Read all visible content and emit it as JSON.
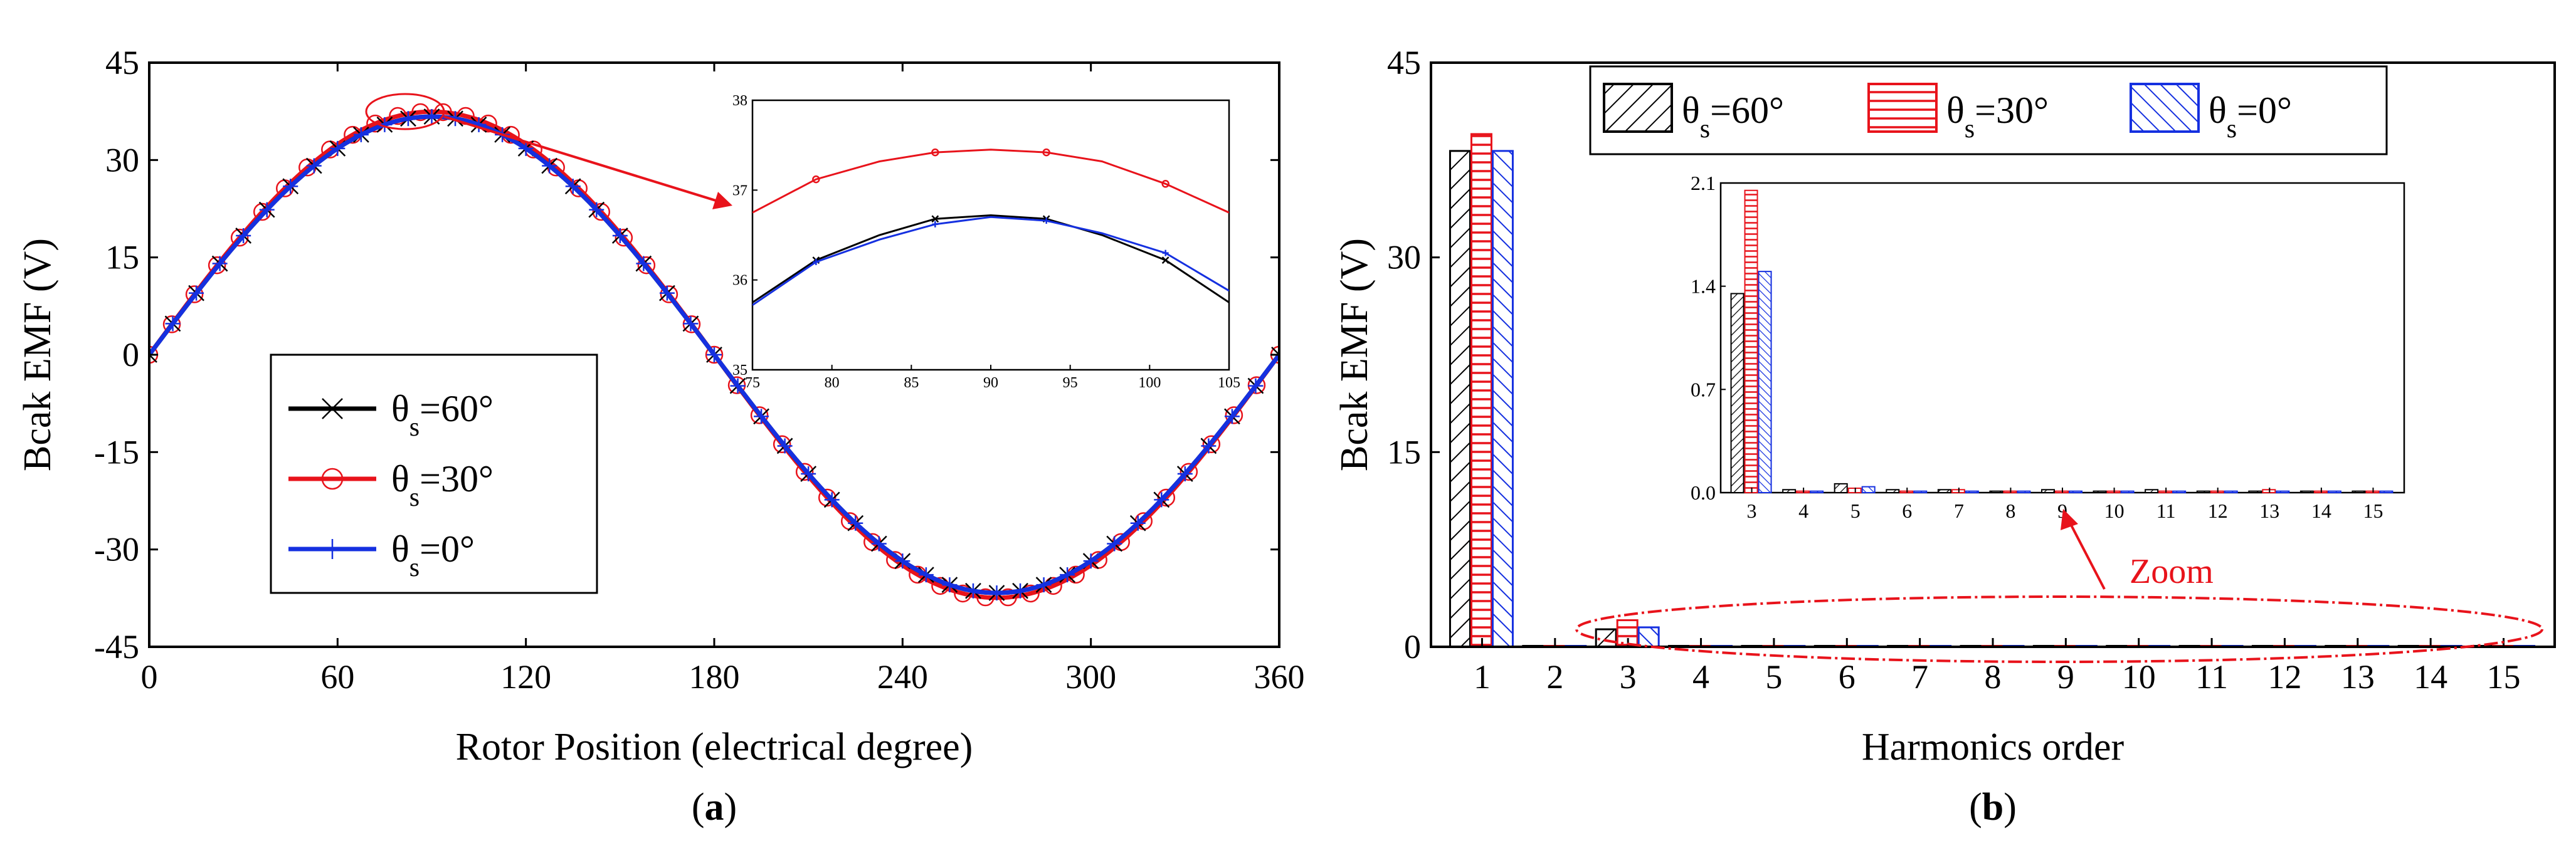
{
  "colors": {
    "black": "#000000",
    "red": "#e8131b",
    "blue": "#1530e0"
  },
  "chart_data": [
    {
      "type": "line",
      "caption": "a",
      "title": "",
      "xlabel": "Rotor Position (electrical degree)",
      "ylabel": "Bcak EMF (V)",
      "xlim": [
        0,
        360
      ],
      "ylim": [
        -45,
        45
      ],
      "xticks": [
        "0",
        "60",
        "120",
        "180",
        "240",
        "300",
        "360"
      ],
      "yticks": [
        "45",
        "30",
        "15",
        "0",
        "-15",
        "-30",
        "-45"
      ],
      "legend_location": "lower-left",
      "series": [
        {
          "name_main": "θ",
          "name_sub": "s",
          "name_rest": "=60°",
          "color": "#000000",
          "marker": "x",
          "amplitude": 36.7
        },
        {
          "name_main": "θ",
          "name_sub": "s",
          "name_rest": "=30°",
          "color": "#e8131b",
          "marker": "o",
          "amplitude": 37.45
        },
        {
          "name_main": "θ",
          "name_sub": "s",
          "name_rest": "=0°",
          "color": "#1530e0",
          "marker": "+",
          "amplitude": 36.7
        }
      ],
      "inset": {
        "xlim": [
          75,
          105
        ],
        "ylim": [
          35,
          38
        ],
        "xticks": [
          "75",
          "80",
          "85",
          "90",
          "95",
          "100",
          "105"
        ],
        "yticks": [
          "38",
          "37",
          "36",
          "35"
        ],
        "x": [
          75,
          79,
          83,
          86.5,
          90,
          93.5,
          97,
          101,
          105
        ],
        "series": [
          {
            "name": "θs=60°",
            "color": "#000000",
            "marker": "x",
            "values": [
              35.75,
              36.22,
              36.5,
              36.68,
              36.72,
              36.68,
              36.5,
              36.22,
              35.75
            ]
          },
          {
            "name": "θs=30°",
            "color": "#e8131b",
            "marker": "o",
            "values": [
              36.75,
              37.12,
              37.32,
              37.42,
              37.45,
              37.42,
              37.32,
              37.07,
              36.75
            ]
          },
          {
            "name": "θs=0°",
            "color": "#1530e0",
            "marker": "+",
            "values": [
              35.72,
              36.2,
              36.45,
              36.62,
              36.7,
              36.66,
              36.52,
              36.3,
              35.88
            ]
          }
        ]
      }
    },
    {
      "type": "bar",
      "caption": "b",
      "title": "",
      "xlabel": "Harmonics order",
      "ylabel": "Bcak EMF (V)",
      "ylim": [
        0,
        45
      ],
      "yticks": [
        "45",
        "30",
        "15",
        "0"
      ],
      "categories": [
        "1",
        "2",
        "3",
        "4",
        "5",
        "6",
        "7",
        "8",
        "9",
        "10",
        "11",
        "12",
        "13",
        "14",
        "15"
      ],
      "legend_location": "top",
      "series": [
        {
          "name_main": "θ",
          "name_sub": "s",
          "name_rest": "=60°",
          "color": "#000000",
          "hatch": "diagonal-right",
          "values": [
            38.2,
            0.02,
            1.35,
            0.02,
            0.06,
            0.02,
            0.02,
            0.01,
            0.02,
            0.01,
            0.02,
            0.01,
            0.01,
            0.01,
            0.01
          ]
        },
        {
          "name_main": "θ",
          "name_sub": "s",
          "name_rest": "=30°",
          "color": "#e8131b",
          "hatch": "horizontal",
          "values": [
            39.5,
            0.01,
            2.05,
            0.01,
            0.03,
            0.01,
            0.02,
            0.01,
            0.01,
            0.01,
            0.01,
            0.01,
            0.02,
            0.01,
            0.01
          ]
        },
        {
          "name_main": "θ",
          "name_sub": "s",
          "name_rest": "=0°",
          "color": "#1530e0",
          "hatch": "diagonal-left",
          "values": [
            38.2,
            0.01,
            1.5,
            0.01,
            0.04,
            0.01,
            0.01,
            0.01,
            0.01,
            0.01,
            0.01,
            0.01,
            0.01,
            0.01,
            0.01
          ]
        }
      ],
      "annotation": "Zoom",
      "inset": {
        "ylim": [
          0,
          2.1
        ],
        "yticks": [
          "2.1",
          "1.4",
          "0.7",
          "0.0"
        ],
        "categories": [
          "3",
          "4",
          "5",
          "6",
          "7",
          "8",
          "9",
          "10",
          "11",
          "12",
          "13",
          "14",
          "15"
        ]
      }
    }
  ]
}
